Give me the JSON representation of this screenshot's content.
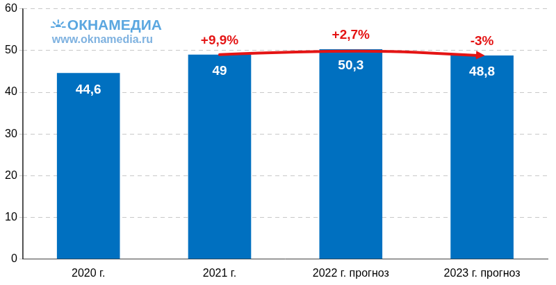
{
  "chart_data": {
    "type": "bar",
    "categories": [
      "2020 г.",
      "2021 г.",
      "2022 г. прогноз",
      "2023 г. прогноз"
    ],
    "values": [
      44.6,
      49,
      50.3,
      48.8
    ],
    "value_labels": [
      "44,6",
      "49",
      "50,3",
      "48,8"
    ],
    "color": "#0070c0",
    "ylim": [
      0,
      60
    ],
    "yticks": [
      0,
      10,
      20,
      30,
      40,
      50,
      60
    ],
    "grid": true,
    "data_labels": true,
    "annotations": [
      {
        "text": "ОКНАМЕДИА"
      },
      {
        "text": "www.oknamedia.ru"
      },
      {
        "text": "+9,9%",
        "category": "2021 г."
      },
      {
        "text": "+2,7%",
        "category": "2022 г. прогноз"
      },
      {
        "text": "-3%",
        "category": "2023 г. прогноз"
      }
    ]
  }
}
